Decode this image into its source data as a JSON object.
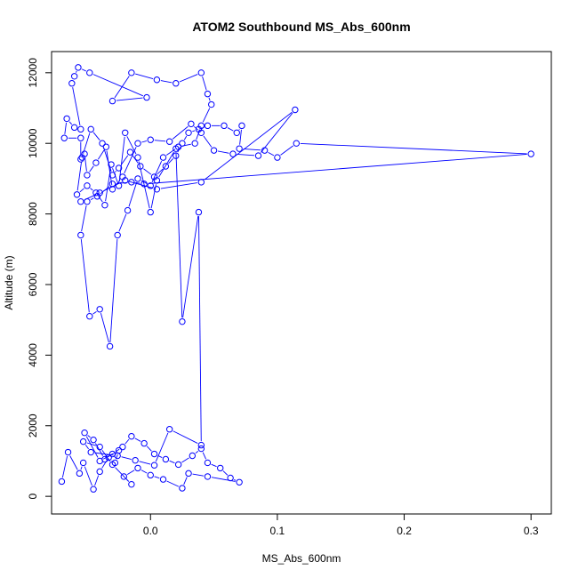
{
  "chart_data": {
    "type": "line",
    "title": "ATOM2 Southbound MS_Abs_600nm",
    "xlabel": "MS_Abs_600nm",
    "ylabel": "Altitude (m)",
    "xlim": [
      -0.078,
      0.316
    ],
    "ylim": [
      -500,
      12600
    ],
    "xticks": [
      0.0,
      0.1,
      0.2,
      0.3
    ],
    "xtick_labels": [
      "0.0",
      "0.1",
      "0.2",
      "0.3"
    ],
    "yticks": [
      0,
      2000,
      4000,
      6000,
      8000,
      10000,
      12000
    ],
    "ytick_labels": [
      "0",
      "2000",
      "4000",
      "6000",
      "8000",
      "10000",
      "12000"
    ],
    "grid": false,
    "legend": "none",
    "series_color": "#0000ff",
    "marker": "open-circle",
    "points": [
      [
        -0.07,
        420
      ],
      [
        -0.065,
        1250
      ],
      [
        -0.056,
        650
      ],
      [
        -0.053,
        950
      ],
      [
        -0.045,
        200
      ],
      [
        -0.04,
        700
      ],
      [
        -0.033,
        1100
      ],
      [
        -0.028,
        950
      ],
      [
        -0.025,
        1300
      ],
      [
        -0.04,
        1000
      ],
      [
        -0.052,
        1800
      ],
      [
        -0.045,
        1600
      ],
      [
        -0.036,
        1050
      ],
      [
        -0.03,
        1200
      ],
      [
        -0.022,
        1400
      ],
      [
        -0.015,
        1700
      ],
      [
        -0.005,
        1500
      ],
      [
        0.003,
        1200
      ],
      [
        0.012,
        1050
      ],
      [
        0.022,
        900
      ],
      [
        0.033,
        1150
      ],
      [
        0.04,
        1350
      ],
      [
        0.045,
        950
      ],
      [
        0.055,
        800
      ],
      [
        0.063,
        520
      ],
      [
        0.07,
        400
      ],
      [
        0.045,
        560
      ],
      [
        0.03,
        650
      ],
      [
        0.025,
        230
      ],
      [
        0.01,
        480
      ],
      [
        0.0,
        600
      ],
      [
        -0.01,
        800
      ],
      [
        -0.021,
        560
      ],
      [
        -0.015,
        340
      ],
      [
        -0.03,
        900
      ],
      [
        -0.04,
        1400
      ],
      [
        -0.053,
        1550
      ],
      [
        -0.047,
        1250
      ],
      [
        -0.026,
        1150
      ],
      [
        -0.012,
        1020
      ],
      [
        0.003,
        880
      ],
      [
        0.015,
        1900
      ],
      [
        0.04,
        1450
      ],
      [
        0.038,
        8050
      ],
      [
        0.025,
        4950
      ],
      [
        0.02,
        9850
      ],
      [
        0.005,
        8950
      ],
      [
        0.0,
        8050
      ],
      [
        -0.01,
        9600
      ],
      [
        -0.02,
        10300
      ],
      [
        -0.025,
        8800
      ],
      [
        -0.031,
        9400
      ],
      [
        -0.036,
        8250
      ],
      [
        -0.043,
        8600
      ],
      [
        -0.05,
        8800
      ],
      [
        -0.058,
        8550
      ],
      [
        -0.054,
        9600
      ],
      [
        -0.047,
        10400
      ],
      [
        -0.038,
        10000
      ],
      [
        -0.03,
        9100
      ],
      [
        -0.025,
        9300
      ],
      [
        -0.016,
        9750
      ],
      [
        -0.008,
        9350
      ],
      [
        0.003,
        9050
      ],
      [
        0.012,
        9350
      ],
      [
        0.02,
        9650
      ],
      [
        0.025,
        10000
      ],
      [
        0.03,
        10300
      ],
      [
        0.038,
        10400
      ],
      [
        0.045,
        10500
      ],
      [
        0.058,
        10500
      ],
      [
        0.068,
        10300
      ],
      [
        0.072,
        10500
      ],
      [
        0.07,
        9850
      ],
      [
        0.09,
        9800
      ],
      [
        0.1,
        9600
      ],
      [
        0.115,
        10000
      ],
      [
        0.3,
        9700
      ],
      [
        -0.005,
        8850
      ],
      [
        -0.015,
        8900
      ],
      [
        -0.03,
        8850
      ],
      [
        -0.042,
        8500
      ],
      [
        -0.05,
        8350
      ],
      [
        -0.055,
        7400
      ],
      [
        -0.048,
        5100
      ],
      [
        -0.04,
        5300
      ],
      [
        -0.032,
        4250
      ],
      [
        -0.026,
        7400
      ],
      [
        -0.018,
        8100
      ],
      [
        -0.01,
        9000
      ],
      [
        0.0,
        8800
      ],
      [
        0.01,
        9600
      ],
      [
        0.022,
        9900
      ],
      [
        0.035,
        10000
      ],
      [
        0.04,
        10500
      ],
      [
        0.048,
        11100
      ],
      [
        0.045,
        11400
      ],
      [
        0.04,
        12000
      ],
      [
        0.02,
        11700
      ],
      [
        0.005,
        11800
      ],
      [
        -0.015,
        12000
      ],
      [
        -0.03,
        11200
      ],
      [
        -0.003,
        11300
      ],
      [
        -0.048,
        12000
      ],
      [
        -0.057,
        12150
      ],
      [
        -0.06,
        11900
      ],
      [
        -0.062,
        11700
      ],
      [
        -0.055,
        10400
      ],
      [
        -0.06,
        10450
      ],
      [
        -0.066,
        10700
      ],
      [
        -0.068,
        10150
      ],
      [
        -0.055,
        10150
      ],
      [
        -0.055,
        9550
      ],
      [
        -0.052,
        9700
      ],
      [
        -0.05,
        9100
      ],
      [
        -0.043,
        9450
      ],
      [
        -0.035,
        9900
      ],
      [
        -0.03,
        8700
      ],
      [
        -0.022,
        9050
      ],
      [
        -0.01,
        10000
      ],
      [
        0.0,
        10100
      ],
      [
        0.015,
        10050
      ],
      [
        0.032,
        10550
      ],
      [
        0.04,
        10300
      ],
      [
        0.05,
        9800
      ],
      [
        0.065,
        9700
      ],
      [
        0.085,
        9650
      ],
      [
        0.114,
        10950
      ],
      [
        0.04,
        8900
      ],
      [
        0.005,
        8700
      ],
      [
        -0.02,
        8950
      ],
      [
        -0.04,
        8600
      ],
      [
        -0.055,
        8350
      ]
    ]
  }
}
